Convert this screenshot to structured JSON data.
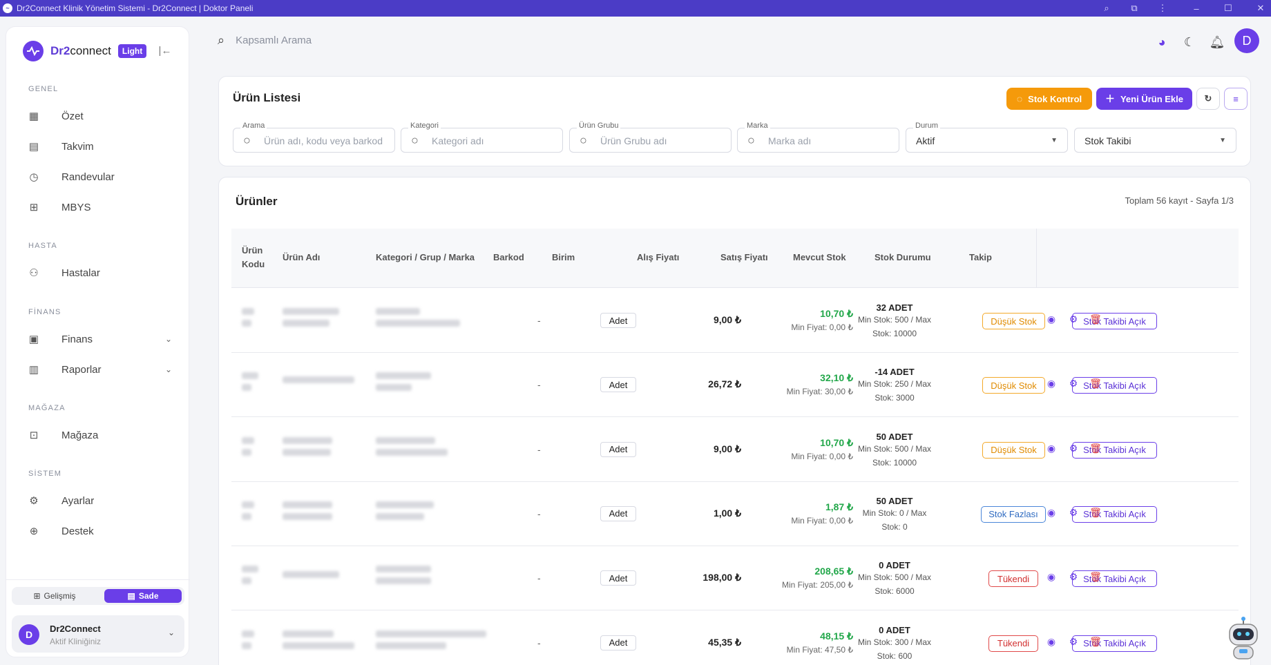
{
  "window": {
    "title": "Dr2Connect Klinik Yönetim Sistemi - Dr2Connect | Doktor Paneli"
  },
  "brand": {
    "name_a": "Dr2",
    "name_b": "connect",
    "theme_badge": "Light"
  },
  "sidebar": {
    "sections": [
      {
        "title": "GENEL",
        "items": [
          {
            "label": "Özet",
            "icon": "grid-icon"
          },
          {
            "label": "Takvim",
            "icon": "calendar-icon"
          },
          {
            "label": "Randevular",
            "icon": "clock-icon"
          },
          {
            "label": "MBYS",
            "icon": "medical-plus-icon"
          }
        ]
      },
      {
        "title": "HASTA",
        "items": [
          {
            "label": "Hastalar",
            "icon": "patients-icon"
          }
        ]
      },
      {
        "title": "FİNANS",
        "items": [
          {
            "label": "Finans",
            "icon": "wallet-icon"
          },
          {
            "label": "Raporlar",
            "icon": "bar-chart-icon"
          }
        ]
      },
      {
        "title": "MAĞAZA",
        "items": [
          {
            "label": "Mağaza",
            "icon": "shopping-bag-icon"
          }
        ]
      },
      {
        "title": "SİSTEM",
        "items": [
          {
            "label": "Ayarlar",
            "icon": "gear-icon"
          },
          {
            "label": "Destek",
            "icon": "lifebuoy-icon"
          }
        ]
      }
    ],
    "modes": {
      "advanced": "Gelişmiş",
      "simple": "Sade",
      "active": "Sade"
    },
    "user": {
      "initial": "D",
      "name": "Dr2Connect",
      "subtitle": "Aktif Kliniğiniz"
    }
  },
  "topbar": {
    "search_placeholder": "Kapsamlı Arama",
    "avatar_initial": "D"
  },
  "filters": {
    "title": "Ürün Listesi",
    "stock_check": "Stok Kontrol",
    "add_product": "Yeni Ürün Ekle",
    "search": {
      "label": "Arama",
      "placeholder": "Ürün adı, kodu veya barkod"
    },
    "category": {
      "label": "Kategori",
      "placeholder": "Kategori adı"
    },
    "group": {
      "label": "Ürün Grubu",
      "placeholder": "Ürün Grubu adı"
    },
    "brand": {
      "label": "Marka",
      "placeholder": "Marka adı"
    },
    "status": {
      "label": "Durum",
      "value": "Aktif"
    },
    "tracking": {
      "value": "Stok Takibi"
    }
  },
  "products": {
    "title": "Ürünler",
    "total": "Toplam 56 kayıt - Sayfa 1/3",
    "columns": {
      "code_a": "Ürün",
      "code_b": "Kodu",
      "name": "Ürün Adı",
      "category": "Kategori / Grup / Marka",
      "barcode": "Barkod",
      "unit": "Birim",
      "buy": "Alış Fiyatı",
      "sell": "Satış Fiyatı",
      "stock": "Mevcut Stok",
      "status": "Stok Durumu",
      "tracking": "Takip"
    },
    "rows": [
      {
        "barcode": "-",
        "unit": "Adet",
        "buy": "9,00 ₺",
        "sell": "10,70 ₺",
        "min_price": "Min Fiyat: 0,00 ₺",
        "stock": "32 ADET",
        "stock_line1": "Min Stok: 500 / Max",
        "stock_line2": "Stok: 10000",
        "status": "Düşük Stok",
        "status_type": "low",
        "tracking": "Stok Takibi Açık"
      },
      {
        "barcode": "-",
        "unit": "Adet",
        "buy": "26,72 ₺",
        "sell": "32,10 ₺",
        "min_price": "Min Fiyat: 30,00 ₺",
        "stock": "-14 ADET",
        "stock_line1": "Min Stok: 250 / Max",
        "stock_line2": "Stok: 3000",
        "status": "Düşük Stok",
        "status_type": "low",
        "tracking": "Stok Takibi Açık"
      },
      {
        "barcode": "-",
        "unit": "Adet",
        "buy": "9,00 ₺",
        "sell": "10,70 ₺",
        "min_price": "Min Fiyat: 0,00 ₺",
        "stock": "50 ADET",
        "stock_line1": "Min Stok: 500 / Max",
        "stock_line2": "Stok: 10000",
        "status": "Düşük Stok",
        "status_type": "low",
        "tracking": "Stok Takibi Açık"
      },
      {
        "barcode": "-",
        "unit": "Adet",
        "buy": "1,00 ₺",
        "sell": "1,87 ₺",
        "min_price": "Min Fiyat: 0,00 ₺",
        "stock": "50 ADET",
        "stock_line1": "Min Stok: 0 / Max",
        "stock_line2": "Stok: 0",
        "status": "Stok Fazlası",
        "status_type": "over",
        "tracking": "Stok Takibi Açık"
      },
      {
        "barcode": "-",
        "unit": "Adet",
        "buy": "198,00 ₺",
        "sell": "208,65 ₺",
        "min_price": "Min Fiyat: 205,00 ₺",
        "stock": "0 ADET",
        "stock_line1": "Min Stok: 500 / Max",
        "stock_line2": "Stok: 6000",
        "status": "Tükendi",
        "status_type": "out",
        "tracking": "Stok Takibi Açık"
      },
      {
        "barcode": "-",
        "unit": "Adet",
        "buy": "45,35 ₺",
        "sell": "48,15 ₺",
        "min_price": "Min Fiyat: 47,50 ₺",
        "stock": "0 ADET",
        "stock_line1": "Min Stok: 300 / Max",
        "stock_line2": "Stok: 600",
        "status": "Tükendi",
        "status_type": "out",
        "tracking": "Stok Takibi Açık"
      }
    ]
  },
  "colors": {
    "accent": "#6a3ee8",
    "titlebar": "#4b3cc6",
    "warning": "#f59a0b",
    "success": "#22a74a",
    "danger": "#e04848",
    "info": "#4a86d9"
  }
}
